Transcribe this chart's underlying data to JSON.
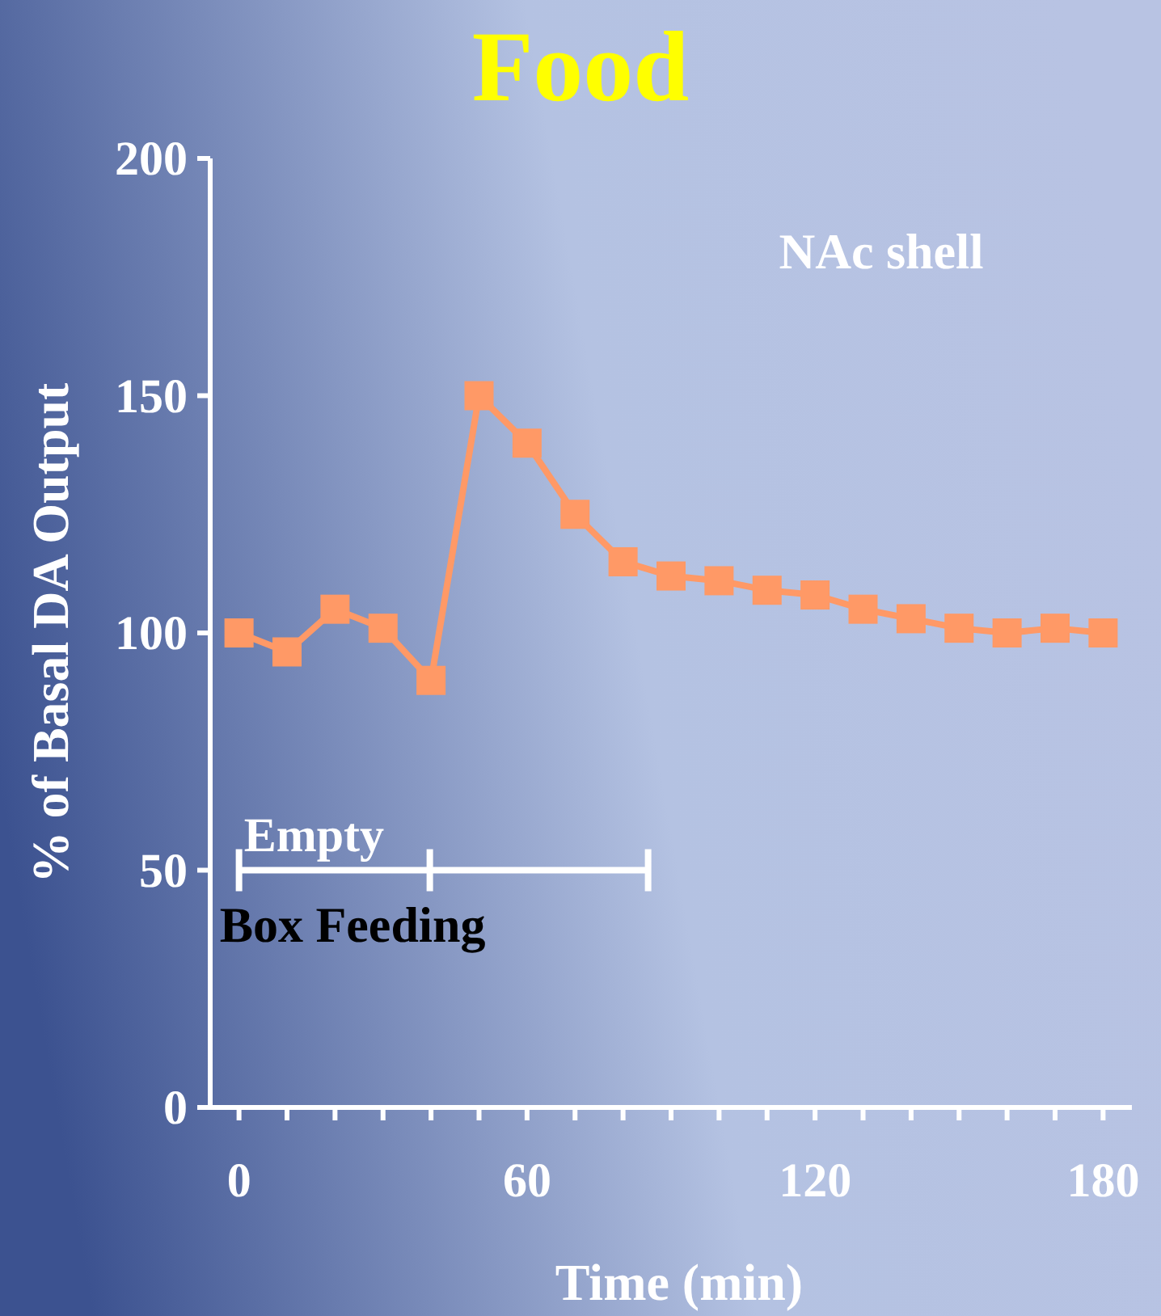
{
  "chart_data": {
    "type": "line",
    "title": "Food",
    "xlabel": "Time (min)",
    "ylabel": "% of Basal DA Output",
    "x": [
      0,
      10,
      20,
      30,
      40,
      50,
      60,
      70,
      80,
      90,
      100,
      110,
      120,
      130,
      140,
      150,
      160,
      170,
      180
    ],
    "series": [
      {
        "color": "#ff9966",
        "values": [
          100,
          96,
          105,
          101,
          90,
          150,
          140,
          125,
          115,
          112,
          111,
          109,
          108,
          105,
          103,
          101,
          100,
          101,
          100
        ]
      }
    ],
    "xlim": [
      -6,
      186
    ],
    "ylim": [
      0,
      200
    ],
    "xticks": [
      0,
      {
        "value": 10,
        "label": null
      },
      {
        "value": 20,
        "label": null
      },
      {
        "value": 30,
        "label": null
      },
      {
        "value": 40,
        "label": null
      },
      {
        "value": 50,
        "label": null
      },
      60,
      {
        "value": 70,
        "label": null
      },
      {
        "value": 80,
        "label": null
      },
      {
        "value": 90,
        "label": null
      },
      {
        "value": 100,
        "label": null
      },
      {
        "value": 110,
        "label": null
      },
      120,
      {
        "value": 130,
        "label": null
      },
      {
        "value": 140,
        "label": null
      },
      {
        "value": 150,
        "label": null
      },
      {
        "value": 160,
        "label": null
      },
      {
        "value": 170,
        "label": null
      },
      180
    ],
    "yticks": [
      0,
      50,
      100,
      150,
      200
    ],
    "marker": "square",
    "line_style": "solid",
    "annotations": [
      "NAc shell",
      "Empty",
      "Box Feeding"
    ]
  }
}
